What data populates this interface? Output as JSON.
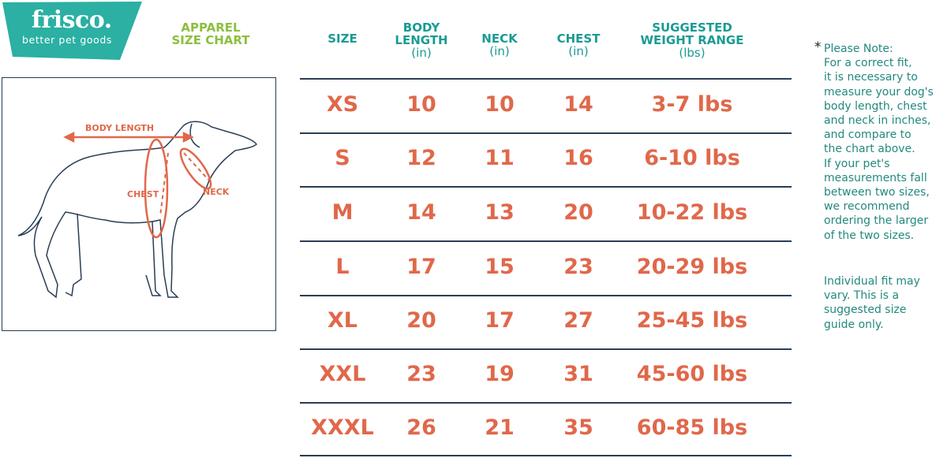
{
  "brand": {
    "name": "frisco.",
    "tagline": "better pet goods",
    "color": "#2bb0a3"
  },
  "title": {
    "line1": "APPAREL",
    "line2": "SIZE CHART",
    "color": "#8cbf3f"
  },
  "diagram": {
    "labels": {
      "body_length": "BODY LENGTH",
      "chest": "CHEST",
      "neck": "NECK"
    }
  },
  "table": {
    "headers": [
      {
        "line1": "SIZE",
        "line2": "",
        "unit": ""
      },
      {
        "line1": "BODY",
        "line2": "LENGTH",
        "unit": "(in)"
      },
      {
        "line1": "NECK",
        "line2": "",
        "unit": "(in)"
      },
      {
        "line1": "CHEST",
        "line2": "",
        "unit": "(in)"
      },
      {
        "line1": "SUGGESTED",
        "line2": "WEIGHT RANGE",
        "unit": "(lbs)"
      }
    ],
    "rows": [
      [
        "XS",
        "10",
        "10",
        "14",
        "3-7 lbs"
      ],
      [
        "S",
        "12",
        "11",
        "16",
        "6-10 lbs"
      ],
      [
        "M",
        "14",
        "13",
        "20",
        "10-22 lbs"
      ],
      [
        "L",
        "17",
        "15",
        "23",
        "20-29 lbs"
      ],
      [
        "XL",
        "20",
        "17",
        "27",
        "25-45 lbs"
      ],
      [
        "XXL",
        "23",
        "19",
        "31",
        "45-60 lbs"
      ],
      [
        "XXXL",
        "26",
        "21",
        "35",
        "60-85 lbs"
      ]
    ],
    "header_color": "#1a9b93",
    "value_color": "#e0684a"
  },
  "note": {
    "asterisk": "*",
    "lines": [
      "Please Note:",
      "For a correct fit,",
      "it is necessary to",
      "measure your dog's",
      "body length, chest",
      "and neck in inches,",
      "and compare to",
      "the chart above.",
      "If your pet's",
      "measurements fall",
      "between two sizes,",
      "we recommend",
      "ordering the larger",
      "of the two sizes."
    ],
    "disclaimer": [
      "Individual fit may",
      "vary. This is a",
      "suggested size",
      "guide only."
    ]
  }
}
